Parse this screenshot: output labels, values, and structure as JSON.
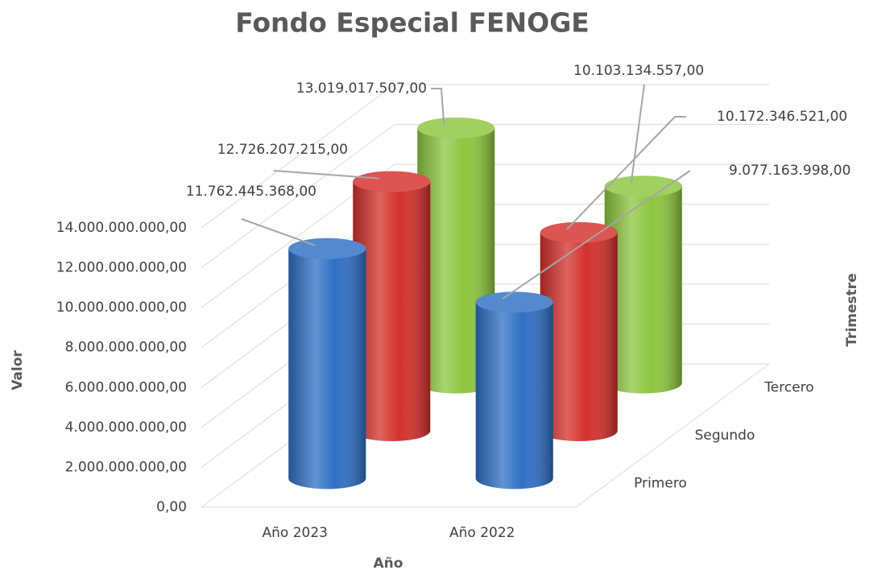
{
  "chart_data": {
    "type": "cylinder3d",
    "title": "Fondo Especial FENOGE",
    "y_label": "Valor",
    "x_label": "Año",
    "z_label": "Trimestre",
    "categories": [
      "Año 2023",
      "Año 2022"
    ],
    "series": [
      {
        "name": "Primero",
        "color": "#2f6fc4",
        "values": [
          11762445368,
          9077163998
        ],
        "value_labels": [
          "11.762.445.368,00",
          "9.077.163.998,00"
        ]
      },
      {
        "name": "Segundo",
        "color": "#d3302c",
        "values": [
          12726207215,
          10172346521
        ],
        "value_labels": [
          "12.726.207.215,00",
          "10.172.346.521,00"
        ]
      },
      {
        "name": "Tercero",
        "color": "#8dc63f",
        "values": [
          13019017507,
          10103134557
        ],
        "value_labels": [
          "13.019.017.507,00",
          "10.103.134.557,00"
        ]
      }
    ],
    "ylim": [
      0,
      14000000000
    ],
    "yticks": [
      {
        "value": 0,
        "label": "0,00"
      },
      {
        "value": 2000000000,
        "label": "2.000.000.000,00"
      },
      {
        "value": 4000000000,
        "label": "4.000.000.000,00"
      },
      {
        "value": 6000000000,
        "label": "6.000.000.000,00"
      },
      {
        "value": 8000000000,
        "label": "8.000.000.000,00"
      },
      {
        "value": 10000000000,
        "label": "10.000.000.000,00"
      },
      {
        "value": 12000000000,
        "label": "12.000.000.000,00"
      },
      {
        "value": 14000000000,
        "label": "14.000.000.000,00"
      }
    ],
    "grid": true
  }
}
